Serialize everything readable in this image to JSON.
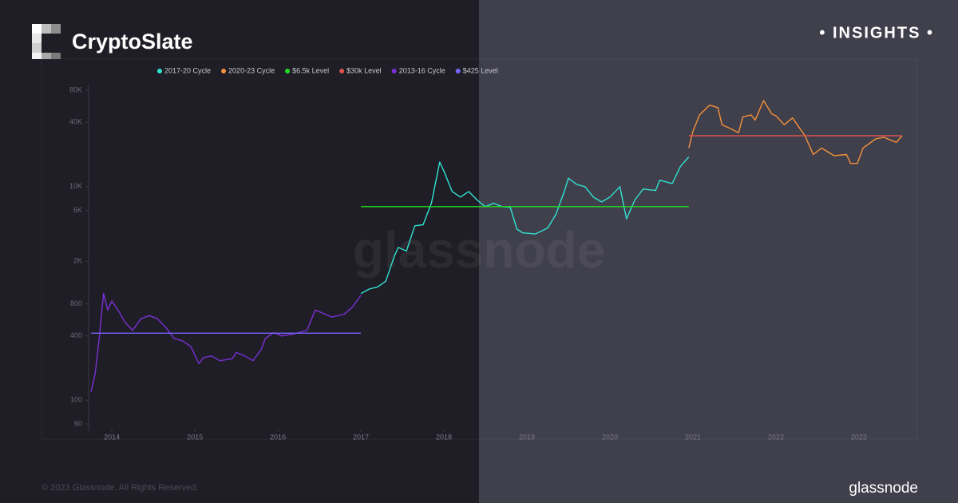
{
  "header": {
    "brand": "CryptoSlate",
    "badge": "• INSIGHTS •"
  },
  "watermark": "glassnode",
  "footer": {
    "copyright": "© 2023 Glassnode. All Rights Reserved.",
    "brand": "glassnode"
  },
  "chart_data": {
    "type": "line",
    "yscale": "log",
    "legend": "top-left",
    "xlim": [
      2013.72,
      2023.52
    ],
    "xticks": [
      2014,
      2015,
      2016,
      2017,
      2018,
      2019,
      2020,
      2021,
      2022,
      2023
    ],
    "ylim": [
      60,
      80000
    ],
    "yticks": [
      60,
      100,
      400,
      800,
      {
        "value": 2000,
        "label": "2K"
      },
      {
        "value": 6000,
        "label": "6K"
      },
      {
        "value": 10000,
        "label": "10K"
      },
      {
        "value": 40000,
        "label": "40K"
      },
      {
        "value": 80000,
        "label": "80K"
      }
    ],
    "series": [
      {
        "name": "2017-20 Cycle",
        "color": "#2fe3d2",
        "x": [
          2017.0,
          2017.1,
          2017.2,
          2017.3,
          2017.4,
          2017.45,
          2017.55,
          2017.65,
          2017.75,
          2017.85,
          2017.95,
          2018.0,
          2018.1,
          2018.2,
          2018.3,
          2018.4,
          2018.5,
          2018.6,
          2018.7,
          2018.8,
          2018.88,
          2018.95,
          2019.1,
          2019.25,
          2019.35,
          2019.45,
          2019.5,
          2019.6,
          2019.7,
          2019.8,
          2019.9,
          2020.0,
          2020.12,
          2020.2,
          2020.3,
          2020.4,
          2020.55,
          2020.6,
          2020.75,
          2020.85,
          2020.95
        ],
        "values": [
          1000,
          1100,
          1150,
          1300,
          2200,
          2700,
          2500,
          4300,
          4400,
          7000,
          17000,
          14000,
          9000,
          8000,
          9000,
          7500,
          6500,
          7000,
          6500,
          6400,
          4000,
          3700,
          3600,
          4100,
          5500,
          9000,
          12000,
          10500,
          10000,
          8000,
          7200,
          8000,
          10000,
          5000,
          7500,
          9500,
          9200,
          11500,
          10700,
          15500,
          19000
        ]
      },
      {
        "name": "2020-23 Cycle",
        "color": "#f5913a",
        "x": [
          2020.95,
          2021.0,
          2021.08,
          2021.2,
          2021.3,
          2021.35,
          2021.45,
          2021.55,
          2021.6,
          2021.7,
          2021.75,
          2021.85,
          2021.95,
          2022.0,
          2022.1,
          2022.2,
          2022.35,
          2022.45,
          2022.55,
          2022.7,
          2022.85,
          2022.9,
          2022.98,
          2023.05,
          2023.2,
          2023.3,
          2023.45,
          2023.52
        ],
        "values": [
          23000,
          33000,
          47000,
          58000,
          55000,
          38000,
          35000,
          32000,
          45000,
          47000,
          42000,
          64000,
          48000,
          46000,
          38000,
          44000,
          30000,
          20000,
          23000,
          19500,
          20000,
          16500,
          16500,
          23000,
          28000,
          29000,
          26000,
          30000
        ]
      },
      {
        "name": "$6.5k Level",
        "color": "#22dd22",
        "x": [
          2017.0,
          2020.95
        ],
        "values": [
          6500,
          6500
        ]
      },
      {
        "name": "$30k Level",
        "color": "#d9544f",
        "x": [
          2020.95,
          2023.52
        ],
        "values": [
          30000,
          30000
        ]
      },
      {
        "name": "2013-16 Cycle",
        "color": "#7b2fd6",
        "x": [
          2013.75,
          2013.8,
          2013.85,
          2013.9,
          2013.95,
          2014.0,
          2014.1,
          2014.15,
          2014.25,
          2014.35,
          2014.45,
          2014.55,
          2014.65,
          2014.75,
          2014.85,
          2014.95,
          2015.05,
          2015.1,
          2015.2,
          2015.3,
          2015.45,
          2015.5,
          2015.6,
          2015.7,
          2015.8,
          2015.85,
          2015.95,
          2016.05,
          2016.2,
          2016.35,
          2016.45,
          2016.55,
          2016.65,
          2016.8,
          2016.9,
          2017.0
        ],
        "values": [
          120,
          180,
          400,
          1000,
          700,
          850,
          650,
          550,
          450,
          580,
          620,
          580,
          480,
          380,
          360,
          320,
          220,
          250,
          260,
          235,
          245,
          280,
          260,
          235,
          300,
          380,
          430,
          400,
          420,
          450,
          700,
          650,
          600,
          640,
          750,
          960
        ]
      },
      {
        "name": "$425 Level",
        "color": "#7766ff",
        "x": [
          2013.75,
          2017.0
        ],
        "values": [
          425,
          425
        ]
      }
    ]
  }
}
